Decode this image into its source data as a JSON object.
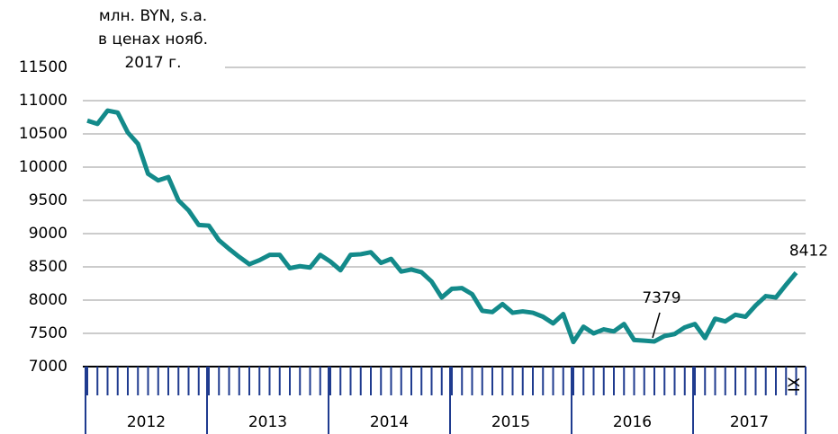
{
  "chart_data": {
    "type": "line",
    "y_label_lines": [
      "млн. BYN, s.a.",
      "в ценах нояб.",
      "2017 г."
    ],
    "year_labels": [
      "2012",
      "2013",
      "2014",
      "2015",
      "2016",
      "2017"
    ],
    "categories": [
      null,
      null,
      null,
      null,
      null,
      null,
      null,
      null,
      null,
      null,
      null,
      null,
      null,
      null,
      null,
      null,
      null,
      null,
      null,
      null,
      null,
      null,
      null,
      null,
      null,
      null,
      null,
      null,
      null,
      null,
      null,
      null,
      null,
      null,
      null,
      null,
      null,
      null,
      null,
      null,
      null,
      null,
      null,
      null,
      null,
      null,
      null,
      null,
      null,
      null,
      null,
      null,
      null,
      null,
      null,
      null,
      null,
      null,
      null,
      null,
      null,
      null,
      null,
      null,
      null,
      null,
      null,
      null,
      null,
      null,
      "XI"
    ],
    "series": [
      {
        "name": null,
        "color": "#138a8a",
        "values": [
          10700,
          10650,
          10850,
          10820,
          10520,
          10350,
          9900,
          9800,
          9850,
          9500,
          9350,
          9130,
          9120,
          8900,
          8770,
          8650,
          8540,
          8600,
          8680,
          8680,
          8480,
          8510,
          8490,
          8680,
          8580,
          8450,
          8680,
          8690,
          8720,
          8560,
          8620,
          8430,
          8460,
          8420,
          8280,
          8040,
          8170,
          8180,
          8090,
          7840,
          7820,
          7940,
          7810,
          7830,
          7810,
          7750,
          7650,
          7790,
          7370,
          7600,
          7500,
          7560,
          7530,
          7640,
          7400,
          7390,
          7379,
          7460,
          7490,
          7590,
          7640,
          7430,
          7720,
          7680,
          7780,
          7750,
          7920,
          8060,
          8040,
          8230,
          8412
        ],
        "value_labels": [
          null,
          null,
          null,
          null,
          null,
          null,
          null,
          null,
          null,
          null,
          null,
          null,
          null,
          null,
          null,
          null,
          null,
          null,
          null,
          null,
          null,
          null,
          null,
          null,
          null,
          null,
          null,
          null,
          null,
          null,
          null,
          null,
          null,
          null,
          null,
          null,
          null,
          null,
          null,
          null,
          null,
          null,
          null,
          null,
          null,
          null,
          null,
          null,
          null,
          null,
          null,
          null,
          null,
          null,
          null,
          null,
          "7379",
          null,
          null,
          null,
          null,
          null,
          null,
          null,
          null,
          null,
          null,
          null,
          null,
          null,
          "8412"
        ]
      }
    ],
    "ylim": [
      7000,
      11500
    ],
    "yticks": [
      7000,
      7500,
      8000,
      8500,
      9000,
      9500,
      10000,
      10500,
      11000,
      11500
    ],
    "grid": true
  }
}
